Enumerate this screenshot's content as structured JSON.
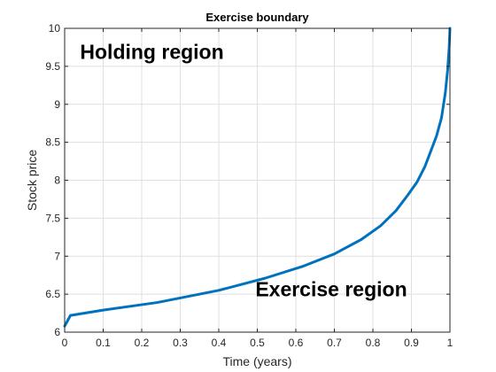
{
  "chart_data": {
    "type": "line",
    "title": "Exercise boundary",
    "xlabel": "Time (years)",
    "ylabel": "Stock price",
    "xlim": [
      0,
      1
    ],
    "ylim": [
      6,
      10
    ],
    "xticks": [
      0,
      0.1,
      0.2,
      0.3,
      0.4,
      0.5,
      0.6,
      0.7,
      0.8,
      0.9,
      1
    ],
    "xtick_labels": [
      "0",
      "0.1",
      "0.2",
      "0.3",
      "0.4",
      "0.5",
      "0.6",
      "0.7",
      "0.8",
      "0.9",
      "1"
    ],
    "yticks": [
      6,
      6.5,
      7,
      7.5,
      8,
      8.5,
      9,
      9.5,
      10
    ],
    "ytick_labels": [
      "6",
      "6.5",
      "7",
      "7.5",
      "8",
      "8.5",
      "9",
      "9.5",
      "10"
    ],
    "grid": true,
    "series": [
      {
        "color": "#0072BD",
        "x": [
          0,
          0.015,
          0.1,
          0.24,
          0.4,
          0.52,
          0.62,
          0.7,
          0.77,
          0.82,
          0.86,
          0.89,
          0.915,
          0.935,
          0.95,
          0.965,
          0.978,
          0.988,
          0.994,
          0.998,
          1.0
        ],
        "y": [
          6.08,
          6.22,
          6.29,
          6.39,
          6.55,
          6.71,
          6.87,
          7.03,
          7.22,
          7.4,
          7.6,
          7.8,
          7.98,
          8.18,
          8.38,
          8.58,
          8.82,
          9.15,
          9.45,
          9.75,
          10.0
        ]
      }
    ],
    "annotations": [
      {
        "text": "Holding region",
        "x": 0.04,
        "y": 9.6
      },
      {
        "text": "Exercise region",
        "x": 0.495,
        "y": 6.47
      }
    ]
  }
}
